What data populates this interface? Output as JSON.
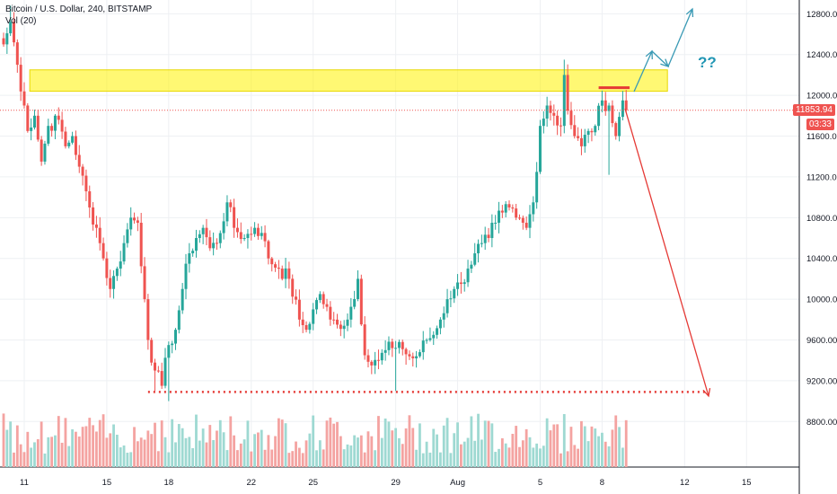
{
  "legend": {
    "title": "Bitcoin / U.S. Dollar, 240, BITSTAMP",
    "sub": "Vol (20)"
  },
  "annotation_text": "??",
  "last_price_label": "11853.94",
  "countdown_label": "03:33",
  "colors": {
    "up": "#26a69a",
    "down": "#ef5350",
    "vol_up": "#9ed9d2",
    "vol_down": "#f4a3a1",
    "zone": "#fff200",
    "arrow_blue": "#3a9ab5",
    "arrow_red": "#e53935",
    "grid": "#eef0f3",
    "price_line": "#ef5350"
  },
  "chart_data": {
    "type": "candlestick",
    "title": "Bitcoin / U.S. Dollar, 240, BITSTAMP",
    "ylim": [
      8450,
      12900
    ],
    "y_ticks": [
      8800,
      9200,
      9600,
      10000,
      10400,
      10800,
      11200,
      11600,
      12000,
      12400,
      12800
    ],
    "y_tick_labels": [
      "8800.00",
      "9200.00",
      "9600.00",
      "10000.00",
      "10400.00",
      "10800.00",
      "11200.00",
      "11600.00",
      "12000.00",
      "12400.00",
      "12800.00"
    ],
    "x_ticks": [
      {
        "label": "11",
        "bar": 6
      },
      {
        "label": "15",
        "bar": 30
      },
      {
        "label": "18",
        "bar": 48
      },
      {
        "label": "22",
        "bar": 72
      },
      {
        "label": "25",
        "bar": 90
      },
      {
        "label": "29",
        "bar": 114
      },
      {
        "label": "Aug",
        "bar": 132
      },
      {
        "label": "5",
        "bar": 156
      },
      {
        "label": "8",
        "bar": 174
      },
      {
        "label": "12",
        "bar": 198
      },
      {
        "label": "15",
        "bar": 216
      }
    ],
    "anchors": [
      [
        0,
        12500
      ],
      [
        2,
        12720
      ],
      [
        4,
        12300
      ],
      [
        6,
        11900
      ],
      [
        7,
        11650
      ],
      [
        9,
        11800
      ],
      [
        11,
        11350
      ],
      [
        13,
        11700
      ],
      [
        16,
        11760
      ],
      [
        18,
        11500
      ],
      [
        20,
        11600
      ],
      [
        22,
        11300
      ],
      [
        25,
        10900
      ],
      [
        27,
        10700
      ],
      [
        29,
        10400
      ],
      [
        31,
        10100
      ],
      [
        33,
        10300
      ],
      [
        35,
        10550
      ],
      [
        37,
        10800
      ],
      [
        39,
        10750
      ],
      [
        41,
        10000
      ],
      [
        42,
        9600
      ],
      [
        44,
        9300
      ],
      [
        46,
        9150
      ],
      [
        48,
        9550
      ],
      [
        50,
        9700
      ],
      [
        52,
        10100
      ],
      [
        54,
        10450
      ],
      [
        56,
        10600
      ],
      [
        58,
        10700
      ],
      [
        60,
        10500
      ],
      [
        62,
        10550
      ],
      [
        65,
        10950
      ],
      [
        67,
        10700
      ],
      [
        70,
        10600
      ],
      [
        73,
        10700
      ],
      [
        75,
        10650
      ],
      [
        77,
        10400
      ],
      [
        80,
        10300
      ],
      [
        83,
        10200
      ],
      [
        86,
        9800
      ],
      [
        88,
        9700
      ],
      [
        90,
        9900
      ],
      [
        92,
        10050
      ],
      [
        95,
        9800
      ],
      [
        97,
        9750
      ],
      [
        100,
        9800
      ],
      [
        103,
        10200
      ],
      [
        105,
        9450
      ],
      [
        107,
        9350
      ],
      [
        109,
        9400
      ],
      [
        111,
        9500
      ],
      [
        113,
        9520
      ],
      [
        115,
        9580
      ],
      [
        117,
        9460
      ],
      [
        119,
        9420
      ],
      [
        121,
        9480
      ],
      [
        123,
        9600
      ],
      [
        125,
        9650
      ],
      [
        127,
        9800
      ],
      [
        129,
        10000
      ],
      [
        131,
        10100
      ],
      [
        133,
        10150
      ],
      [
        135,
        10300
      ],
      [
        137,
        10450
      ],
      [
        139,
        10550
      ],
      [
        141,
        10600
      ],
      [
        143,
        10750
      ],
      [
        145,
        10850
      ],
      [
        147,
        10900
      ],
      [
        149,
        10800
      ],
      [
        151,
        10750
      ],
      [
        152,
        10700
      ],
      [
        154,
        10950
      ],
      [
        156,
        11700
      ],
      [
        158,
        11900
      ],
      [
        160,
        11800
      ],
      [
        162,
        11700
      ],
      [
        163,
        12200
      ],
      [
        164,
        11850
      ],
      [
        166,
        11600
      ],
      [
        168,
        11500
      ],
      [
        170,
        11650
      ],
      [
        172,
        11700
      ],
      [
        174,
        11950
      ],
      [
        176,
        11900
      ],
      [
        178,
        11600
      ],
      [
        180,
        11950
      ],
      [
        181,
        11854
      ]
    ],
    "last_price": 11853.94,
    "resistance_zone": [
      12040,
      12250
    ],
    "resistance_start_bar": 5,
    "resistance_end_bar": 193,
    "support_level": 9090,
    "support_start_bar": 42,
    "support_end_bar": 204,
    "resistance_line": {
      "price": 12075,
      "from_bar": 173,
      "to_bar": 182
    }
  }
}
